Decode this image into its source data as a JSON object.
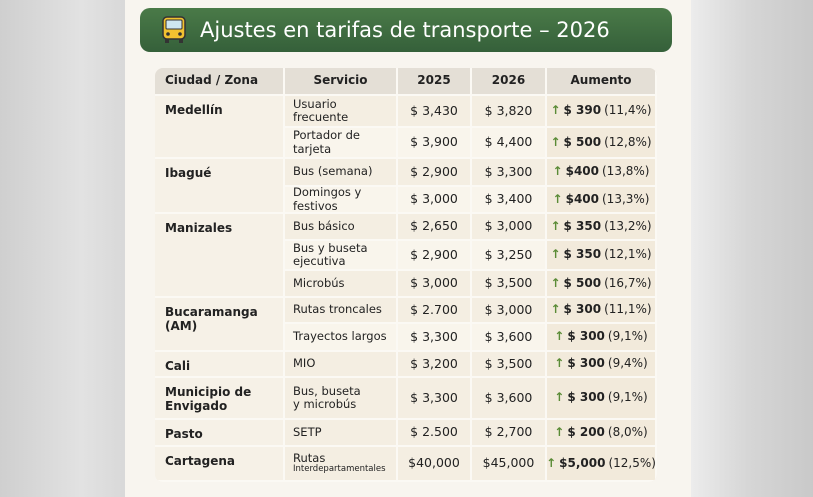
{
  "header": {
    "title": "Ajustes en tarifas de transporte – 2026"
  },
  "table": {
    "columns": [
      "Ciudad / Zona",
      "Servicio",
      "2025",
      "2026",
      "Aumento"
    ],
    "groups": [
      {
        "city": "Medellín",
        "rows": [
          {
            "service": [
              "Usuario frecuente"
            ],
            "fare_2025": "$ 3,430",
            "fare_2026": "$ 3,820",
            "increase": "$ 390",
            "percent": "(11,4%)"
          },
          {
            "service": [
              "Portador de tarjeta"
            ],
            "fare_2025": "$ 3,900",
            "fare_2026": "$ 4,400",
            "increase": "$ 500",
            "percent": "(12,8%)"
          }
        ]
      },
      {
        "city": "Ibagué",
        "rows": [
          {
            "service": [
              "Bus (semana)"
            ],
            "fare_2025": "$ 2,900",
            "fare_2026": "$ 3,300",
            "increase": "$400",
            "percent": "(13,8%)"
          },
          {
            "service": [
              "Domingos y festivos"
            ],
            "fare_2025": "$ 3,000",
            "fare_2026": "$ 3,400",
            "increase": "$400",
            "percent": "(13,3%)"
          }
        ]
      },
      {
        "city": "Manizales",
        "rows": [
          {
            "service": [
              "Bus básico"
            ],
            "fare_2025": "$ 2,650",
            "fare_2026": "$ 3,000",
            "increase": "$ 350",
            "percent": "(13,2%)"
          },
          {
            "service": [
              "Bus y buseta",
              "ejecutiva"
            ],
            "fare_2025": "$ 2,900",
            "fare_2026": "$ 3,250",
            "increase": "$ 350",
            "percent": "(12,1%)"
          },
          {
            "service": [
              "Microbús"
            ],
            "fare_2025": "$ 3,000",
            "fare_2026": "$ 3,500",
            "increase": "$ 500",
            "percent": "(16,7%)"
          }
        ]
      },
      {
        "city": "Bucaramanga (AM)",
        "rows": [
          {
            "service": [
              "Rutas troncales"
            ],
            "fare_2025": "$ 2.700",
            "fare_2026": "$ 3,000",
            "increase": "$ 300",
            "percent": "(11,1%)"
          },
          {
            "service": [
              "Trayectos largos"
            ],
            "fare_2025": "$ 3,300",
            "fare_2026": "$ 3,600",
            "increase": "$ 300",
            "percent": "(9,1%)"
          }
        ]
      },
      {
        "city": "Cali",
        "rows": [
          {
            "service": [
              "MIO"
            ],
            "fare_2025": "$ 3,200",
            "fare_2026": "$ 3,500",
            "increase": "$ 300",
            "percent": "(9,4%)"
          }
        ]
      },
      {
        "city": "Municipio de Envigado",
        "rows": [
          {
            "service": [
              "Bus, buseta",
              "y microbús"
            ],
            "fare_2025": "$ 3,300",
            "fare_2026": "$ 3,600",
            "increase": "$ 300",
            "percent": "(9,1%)"
          }
        ]
      },
      {
        "city": "Pasto",
        "rows": [
          {
            "service": [
              "SETP"
            ],
            "fare_2025": "$ 2.500",
            "fare_2026": "$ 2,700",
            "increase": "$ 200",
            "percent": "(8,0%)"
          }
        ]
      },
      {
        "city": "Cartagena",
        "rows": [
          {
            "service": [
              "Rutas"
            ],
            "service_note": "Interdepartamentales",
            "fare_2025": "$40,000",
            "fare_2026": "$45,000",
            "increase": "$5,000",
            "percent": "(12,5%)"
          }
        ]
      }
    ]
  }
}
